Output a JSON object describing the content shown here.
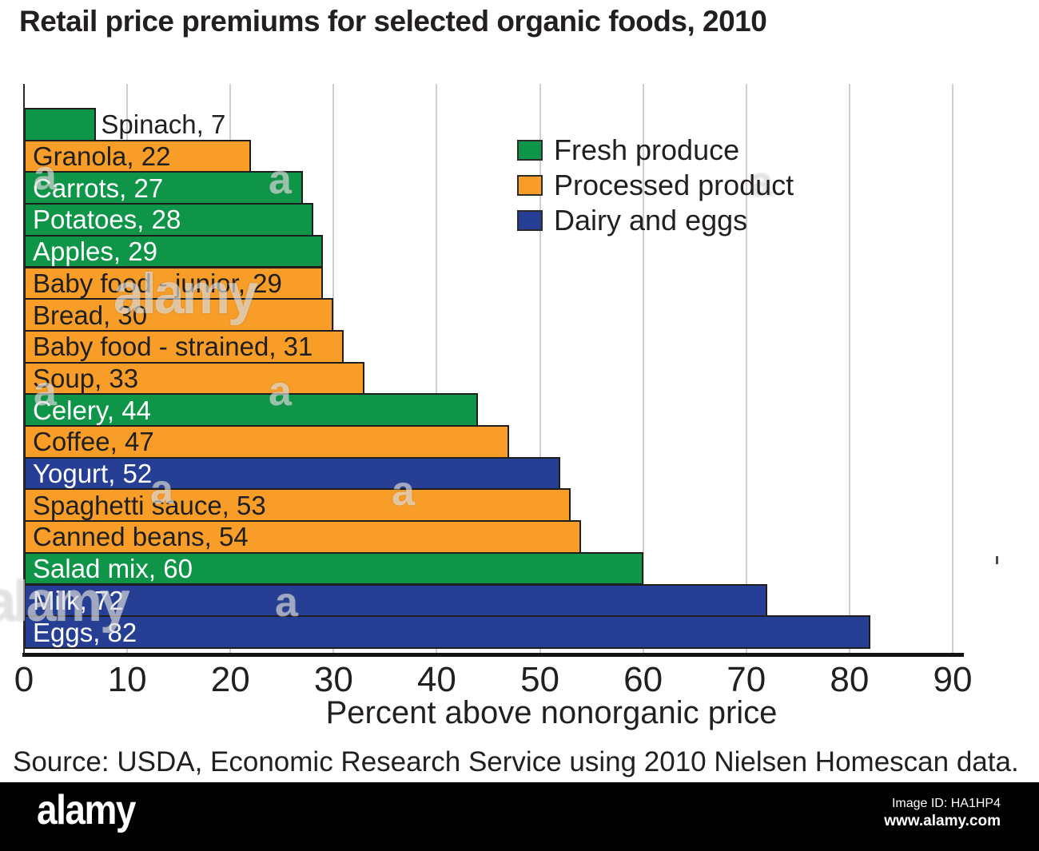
{
  "title": "Retail price premiums for selected organic foods, 2010",
  "chart_data": {
    "type": "bar",
    "orientation": "horizontal",
    "title": "Retail price premiums for selected organic foods, 2010",
    "xlabel": "Percent above nonorganic price",
    "xlim": [
      0,
      90
    ],
    "xticks": [
      0,
      10,
      20,
      30,
      40,
      50,
      60,
      70,
      80,
      90
    ],
    "grid": true,
    "legend_position": "upper-right",
    "bars": [
      {
        "category": "Spinach",
        "value": 7,
        "group": "Fresh produce"
      },
      {
        "category": "Granola",
        "value": 22,
        "group": "Processed product"
      },
      {
        "category": "Carrots",
        "value": 27,
        "group": "Fresh produce"
      },
      {
        "category": "Potatoes",
        "value": 28,
        "group": "Fresh produce"
      },
      {
        "category": "Apples",
        "value": 29,
        "group": "Fresh produce"
      },
      {
        "category": "Baby food - junior",
        "value": 29,
        "group": "Processed product"
      },
      {
        "category": "Bread",
        "value": 30,
        "group": "Processed product"
      },
      {
        "category": "Baby food - strained",
        "value": 31,
        "group": "Processed product"
      },
      {
        "category": "Soup",
        "value": 33,
        "group": "Processed product"
      },
      {
        "category": "Celery",
        "value": 44,
        "group": "Fresh produce"
      },
      {
        "category": "Coffee",
        "value": 47,
        "group": "Processed product"
      },
      {
        "category": "Yogurt",
        "value": 52,
        "group": "Dairy and eggs"
      },
      {
        "category": "Spaghetti sauce",
        "value": 53,
        "group": "Processed product"
      },
      {
        "category": "Canned beans",
        "value": 54,
        "group": "Processed product"
      },
      {
        "category": "Salad mix",
        "value": 60,
        "group": "Fresh produce"
      },
      {
        "category": "Milk",
        "value": 72,
        "group": "Dairy and eggs"
      },
      {
        "category": "Eggs",
        "value": 82,
        "group": "Dairy and eggs"
      }
    ],
    "legend": [
      {
        "label": "Fresh produce",
        "color": "#0F9548"
      },
      {
        "label": "Processed product",
        "color": "#F79D28"
      },
      {
        "label": "Dairy and eggs",
        "color": "#263F94"
      }
    ]
  },
  "source_note": "Source: USDA, Economic Research Service using 2010 Nielsen Homescan data.",
  "footer": {
    "brand": "alamy",
    "image_id": "Image ID: HA1HP4",
    "website": "www.alamy.com"
  },
  "watermark": {
    "brand": "alamy",
    "letter": "a"
  }
}
